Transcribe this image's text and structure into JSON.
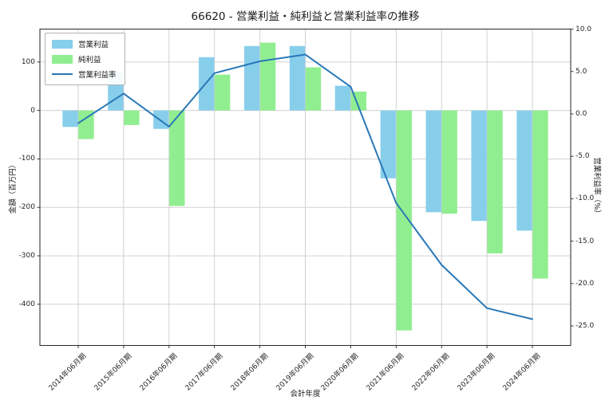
{
  "figure": {
    "title": "66620 - 営業利益・純利益と営業利益率の推移"
  },
  "chart_data": {
    "type": "bar",
    "subtype": "grouped-bars-with-line-overlay",
    "title": "66620 - 営業利益・純利益と営業利益率の推移",
    "xlabel": "会計年度",
    "ylabel_left": "金額（百万円）",
    "ylabel_right": "営業利益率（%）",
    "categories": [
      "2014年06月期",
      "2015年06月期",
      "2016年06月期",
      "2017年06月期",
      "2018年06月期",
      "2019年06月期",
      "2020年06月期",
      "2021年06月期",
      "2022年06月期",
      "2023年06月期",
      "2024年06月期"
    ],
    "series": [
      {
        "name": "営業利益",
        "kind": "bar",
        "axis": "left",
        "color": "#87CEEB",
        "values": [
          -34,
          78,
          -38,
          110,
          133,
          133,
          51,
          -140,
          -210,
          -228,
          -248
        ]
      },
      {
        "name": "純利益",
        "kind": "bar",
        "axis": "left",
        "color": "#90EE90",
        "values": [
          -59,
          -30,
          -197,
          74,
          140,
          89,
          39,
          -454,
          -213,
          -295,
          -347
        ]
      },
      {
        "name": "営業利益率",
        "kind": "line",
        "axis": "right",
        "color": "#2878b8",
        "values": [
          -1.1,
          2.4,
          -1.5,
          4.8,
          6.2,
          7.0,
          3.2,
          -10.5,
          -17.8,
          -22.9,
          -24.2
        ]
      }
    ],
    "yticks_left": [
      100,
      0,
      -100,
      -200,
      -300,
      -400
    ],
    "yticks_right": [
      10.0,
      5.0,
      0.0,
      -5.0,
      -10.0,
      -15.0,
      -20.0,
      -25.0
    ],
    "ylim_left": [
      -485,
      168
    ],
    "ylim_right": [
      -27.3,
      10.0
    ],
    "grid": true,
    "legend_position": "upper-left"
  },
  "colors": {
    "background": "#ffffff",
    "grid": "#cccccc",
    "spine": "#262626",
    "text": "#262626",
    "bar_operating_income": "#87CEEB",
    "bar_net_income": "#90EE90",
    "line_operating_margin": "#2878b8"
  }
}
